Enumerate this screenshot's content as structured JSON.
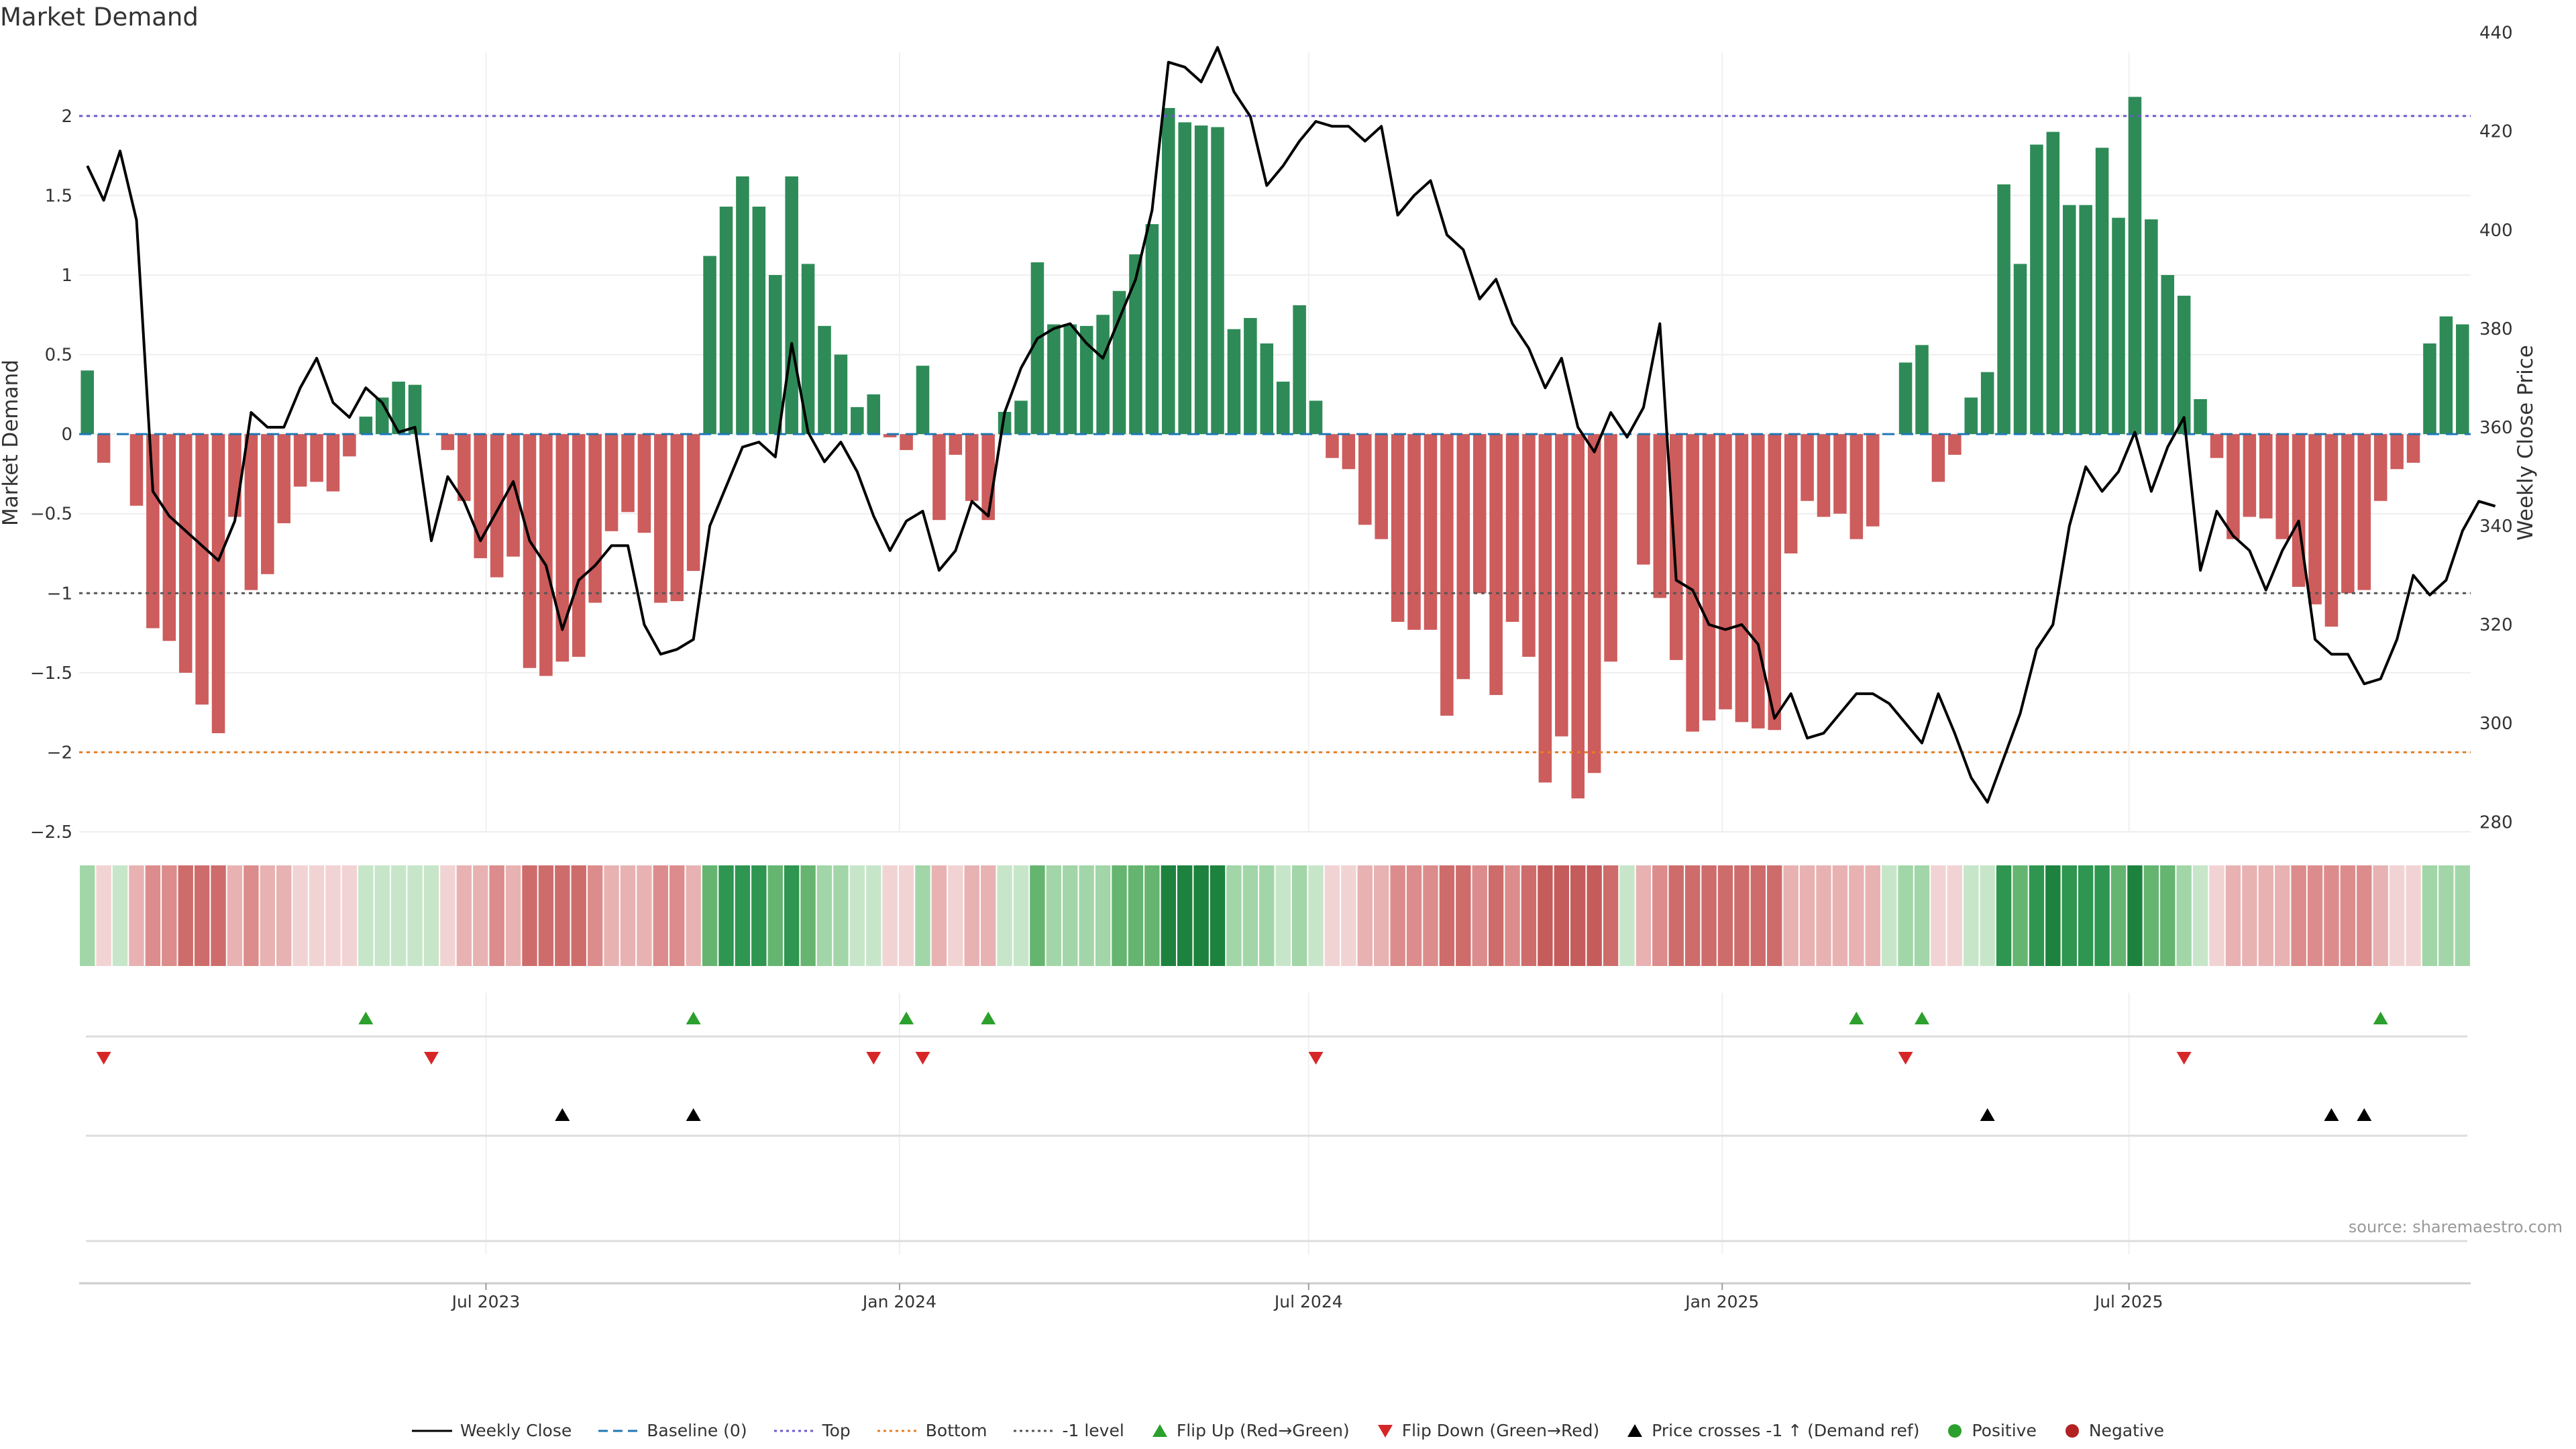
{
  "title": "Market Demand",
  "source": "source: sharemaestro.com",
  "colors": {
    "positive": "#2e8b57",
    "negative": "#cd5c5c",
    "price": "#000000",
    "baseline": "#1f77b4",
    "top": "#6a5acd",
    "bottom": "#e67e22",
    "minus_one": "#555555",
    "flip_up": "#2ca02c",
    "flip_down": "#d62728",
    "cross": "#000000"
  },
  "legend": [
    {
      "label": "Weekly Close",
      "kind": "line",
      "color": "#000000"
    },
    {
      "label": "Baseline (0)",
      "kind": "dash",
      "color": "#1f77b4"
    },
    {
      "label": "Top",
      "kind": "dot",
      "color": "#6a5acd"
    },
    {
      "label": "Bottom",
      "kind": "dot",
      "color": "#e67e22"
    },
    {
      "label": "-1 level",
      "kind": "dot",
      "color": "#555555"
    },
    {
      "label": "Flip Up (Red→Green)",
      "kind": "tri-up",
      "color": "#2ca02c"
    },
    {
      "label": "Flip Down (Green→Red)",
      "kind": "tri-down",
      "color": "#d62728"
    },
    {
      "label": "Price crosses -1 ↑ (Demand ref)",
      "kind": "tri-up",
      "color": "#000000"
    },
    {
      "label": "Positive",
      "kind": "circle",
      "color": "#2ca02c"
    },
    {
      "label": "Negative",
      "kind": "circle",
      "color": "#b22222"
    }
  ],
  "chart_data": {
    "type": "bar",
    "ylabel": "Market Demand",
    "y2label": "Weekly Close Price",
    "ylim": [
      -2.5,
      2.4
    ],
    "y2lim": [
      278,
      436
    ],
    "yticks": [
      -2.5,
      -2,
      -1.5,
      -1,
      -0.5,
      0,
      0.5,
      1,
      1.5,
      2
    ],
    "ytick_labels": [
      "−2.5",
      "−2",
      "−1.5",
      "−1",
      "−0.5",
      "0",
      "0.5",
      "1",
      "1.5",
      "2"
    ],
    "y2ticks": [
      280,
      300,
      320,
      340,
      360,
      380,
      400,
      420,
      440
    ],
    "x_start": "2023-01-01",
    "x_end": "2025-11-30",
    "xticks": [
      {
        "date": "2023-07-01",
        "label": "Jul 2023"
      },
      {
        "date": "2024-01-01",
        "label": "Jan 2024"
      },
      {
        "date": "2024-07-01",
        "label": "Jul 2024"
      },
      {
        "date": "2025-01-01",
        "label": "Jan 2025"
      },
      {
        "date": "2025-07-01",
        "label": "Jul 2025"
      }
    ],
    "reference_lines": [
      {
        "name": "Top",
        "y": 2
      },
      {
        "name": "Bottom",
        "y": -2
      },
      {
        "name": "-1 level",
        "y": -1
      },
      {
        "name": "Baseline (0)",
        "y": 0
      }
    ],
    "series": [
      {
        "name": "Market Demand",
        "values": [
          0.4,
          -0.18,
          0,
          -0.45,
          -1.22,
          -1.3,
          -1.5,
          -1.7,
          -1.88,
          -0.52,
          -0.98,
          -0.88,
          -0.56,
          -0.33,
          -0.3,
          -0.36,
          -0.14,
          0.11,
          0.23,
          0.33,
          0.31,
          0,
          -0.1,
          -0.42,
          -0.78,
          -0.9,
          -0.77,
          -1.47,
          -1.52,
          -1.43,
          -1.4,
          -1.06,
          -0.61,
          -0.49,
          -0.62,
          -1.06,
          -1.05,
          -0.86,
          1.12,
          1.43,
          1.62,
          1.43,
          1.0,
          1.62,
          1.07,
          0.68,
          0.5,
          0.17,
          0.25,
          -0.02,
          -0.1,
          0.43,
          -0.54,
          -0.13,
          -0.42,
          -0.54,
          0.14,
          0.21,
          1.08,
          0.69,
          0.69,
          0.68,
          0.75,
          0.9,
          1.13,
          1.32,
          2.05,
          1.96,
          1.94,
          1.93,
          0.66,
          0.73,
          0.57,
          0.33,
          0.81,
          0.21,
          -0.15,
          -0.22,
          -0.57,
          -0.66,
          -1.18,
          -1.23,
          -1.23,
          -1.77,
          -1.54,
          -1.0,
          -1.64,
          -1.18,
          -1.4,
          -2.19,
          -1.9,
          -2.29,
          -2.13,
          -1.43,
          0,
          -0.82,
          -1.03,
          -1.42,
          -1.87,
          -1.8,
          -1.73,
          -1.81,
          -1.85,
          -1.86,
          -0.75,
          -0.42,
          -0.52,
          -0.5,
          -0.66,
          -0.58,
          0,
          0.45,
          0.56,
          -0.3,
          -0.13,
          0.23,
          0.39,
          1.57,
          1.07,
          1.82,
          1.9,
          1.44,
          1.44,
          1.8,
          1.36,
          2.12,
          1.35,
          1.0,
          0.87,
          0.22,
          -0.15,
          -0.66,
          -0.52,
          -0.53,
          -0.66,
          -0.96,
          -1.07,
          -1.21,
          -1.0,
          -0.98,
          -0.42,
          -0.22,
          -0.18,
          0.57,
          0.74,
          0.69
        ]
      },
      {
        "name": "Weekly Close",
        "axis": "right",
        "values": [
          413,
          406,
          416,
          402,
          347,
          342,
          339,
          336,
          333,
          341,
          363,
          360,
          360,
          368,
          374,
          365,
          362,
          368,
          365,
          359,
          360,
          337,
          350,
          345,
          337,
          343,
          349,
          337,
          332,
          319,
          329,
          332,
          336,
          336,
          320,
          314,
          315,
          317,
          340,
          348,
          356,
          357,
          354,
          377,
          359,
          353,
          357,
          351,
          342,
          335,
          341,
          343,
          331,
          335,
          345,
          342,
          363,
          372,
          378,
          380,
          381,
          377,
          374,
          382,
          390,
          404,
          434,
          433,
          430,
          437,
          428,
          423,
          409,
          413,
          418,
          422,
          421,
          421,
          418,
          421,
          403,
          407,
          410,
          399,
          396,
          386,
          390,
          381,
          376,
          368,
          374,
          360,
          355,
          363,
          358,
          364,
          381,
          329,
          327,
          320,
          319,
          320,
          316,
          301,
          306,
          297,
          298,
          302,
          306,
          306,
          304,
          300,
          296,
          306,
          298,
          289,
          284,
          293,
          302,
          315,
          320,
          340,
          352,
          347,
          351,
          359,
          347,
          356,
          362,
          331,
          343,
          338,
          335,
          327,
          335,
          341,
          317,
          314,
          314,
          308,
          309,
          317,
          330,
          326,
          329,
          339,
          345,
          344
        ]
      }
    ],
    "strip": {
      "name": "Demand intensity strip",
      "values": [
        0.4,
        -0.18,
        0,
        -0.45,
        -1.22,
        -1.3,
        -1.5,
        -1.7,
        -1.88,
        -0.52,
        -0.98,
        -0.88,
        -0.56,
        -0.33,
        -0.3,
        -0.36,
        -0.14,
        0.11,
        0.23,
        0.33,
        0.31,
        0,
        -0.1,
        -0.42,
        -0.78,
        -0.9,
        -0.77,
        -1.47,
        -1.52,
        -1.43,
        -1.4,
        -1.06,
        -0.61,
        -0.49,
        -0.62,
        -1.06,
        -1.05,
        -0.86,
        1.12,
        1.43,
        1.62,
        1.43,
        1.0,
        1.62,
        1.07,
        0.68,
        0.5,
        0.17,
        0.25,
        -0.02,
        -0.1,
        0.43,
        -0.54,
        -0.13,
        -0.42,
        -0.54,
        0.14,
        0.21,
        1.08,
        0.69,
        0.69,
        0.68,
        0.75,
        0.9,
        1.13,
        1.32,
        2.05,
        1.96,
        1.94,
        1.93,
        0.66,
        0.73,
        0.57,
        0.33,
        0.81,
        0.21,
        -0.15,
        -0.22,
        -0.57,
        -0.66,
        -1.18,
        -1.23,
        -1.23,
        -1.77,
        -1.54,
        -1.0,
        -1.64,
        -1.18,
        -1.4,
        -2.19,
        -1.9,
        -2.29,
        -2.13,
        -1.43,
        0,
        -0.82,
        -1.03,
        -1.42,
        -1.87,
        -1.8,
        -1.73,
        -1.81,
        -1.85,
        -1.86,
        -0.75,
        -0.42,
        -0.52,
        -0.5,
        -0.66,
        -0.58,
        0,
        0.45,
        0.56,
        -0.3,
        -0.13,
        0.23,
        0.39,
        1.57,
        1.07,
        1.82,
        1.9,
        1.44,
        1.44,
        1.8,
        1.36,
        2.12,
        1.35,
        1.0,
        0.87,
        0.22,
        -0.15,
        -0.66,
        -0.52,
        -0.53,
        -0.66,
        -0.96,
        -1.07,
        -1.21,
        -1.0,
        -0.98,
        -0.42,
        -0.22,
        -0.18,
        0.57,
        0.74,
        0.69
      ]
    },
    "flip_up_weeks": [
      17,
      37,
      50,
      55,
      108,
      112,
      140
    ],
    "flip_down_weeks": [
      1,
      21,
      48,
      51,
      75,
      111,
      128
    ],
    "price_cross_weeks": [
      29,
      37,
      116,
      137,
      139
    ]
  }
}
